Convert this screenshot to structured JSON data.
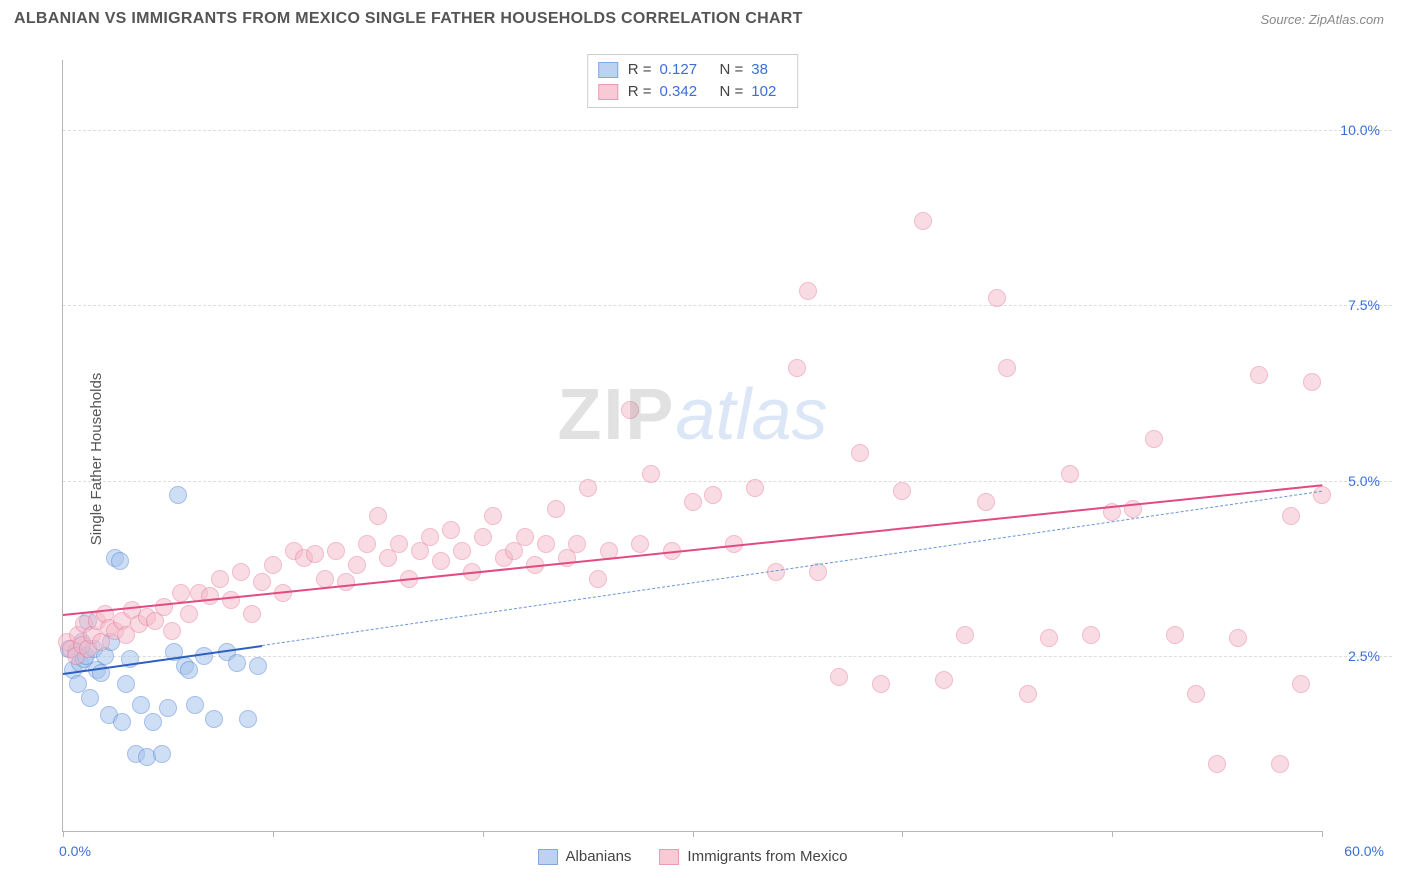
{
  "header": {
    "title": "ALBANIAN VS IMMIGRANTS FROM MEXICO SINGLE FATHER HOUSEHOLDS CORRELATION CHART",
    "source": "Source: ZipAtlas.com"
  },
  "chart": {
    "type": "scatter",
    "ylabel": "Single Father Households",
    "xlim": [
      0,
      60
    ],
    "ylim": [
      0,
      11
    ],
    "xticks_minor_step": 10,
    "yticks": [
      2.5,
      5.0,
      7.5,
      10.0
    ],
    "ytick_labels": [
      "2.5%",
      "5.0%",
      "7.5%",
      "10.0%"
    ],
    "xmin_label": "0.0%",
    "xmax_label": "60.0%",
    "background_color": "#ffffff",
    "grid_color": "#dddddd",
    "axis_color": "#b6b6b6",
    "marker_radius": 9,
    "marker_border_width": 1.2,
    "series": [
      {
        "id": "albanians",
        "label": "Albanians",
        "fill": "#a7c4ec",
        "fill_opacity": 0.55,
        "stroke": "#5a8bd6",
        "trend_color": "#2c5fc0",
        "trend_dash_color": "#6a95d8",
        "trend_width": 2.5,
        "R": 0.127,
        "N": 38,
        "trend_solid": {
          "x0": 0,
          "y0": 2.25,
          "x1": 9.5,
          "y1": 2.65
        },
        "trend_dash": {
          "x0": 9.5,
          "y0": 2.65,
          "x1": 60,
          "y1": 4.85
        },
        "points": [
          [
            0.3,
            2.6
          ],
          [
            0.5,
            2.3
          ],
          [
            0.6,
            2.55
          ],
          [
            0.7,
            2.1
          ],
          [
            0.8,
            2.4
          ],
          [
            0.9,
            2.7
          ],
          [
            1.0,
            2.45
          ],
          [
            1.1,
            2.5
          ],
          [
            1.2,
            3.0
          ],
          [
            1.3,
            1.9
          ],
          [
            1.5,
            2.6
          ],
          [
            1.6,
            2.3
          ],
          [
            1.8,
            2.25
          ],
          [
            2.0,
            2.5
          ],
          [
            2.2,
            1.65
          ],
          [
            2.3,
            2.7
          ],
          [
            2.5,
            3.9
          ],
          [
            2.7,
            3.85
          ],
          [
            2.8,
            1.55
          ],
          [
            3.0,
            2.1
          ],
          [
            3.2,
            2.45
          ],
          [
            3.5,
            1.1
          ],
          [
            3.7,
            1.8
          ],
          [
            4.0,
            1.05
          ],
          [
            4.3,
            1.55
          ],
          [
            4.7,
            1.1
          ],
          [
            5.0,
            1.75
          ],
          [
            5.3,
            2.55
          ],
          [
            5.5,
            4.8
          ],
          [
            5.8,
            2.35
          ],
          [
            6.0,
            2.3
          ],
          [
            6.3,
            1.8
          ],
          [
            6.7,
            2.5
          ],
          [
            7.2,
            1.6
          ],
          [
            7.8,
            2.55
          ],
          [
            8.3,
            2.4
          ],
          [
            8.8,
            1.6
          ],
          [
            9.3,
            2.35
          ]
        ]
      },
      {
        "id": "mexico",
        "label": "Immigrants from Mexico",
        "fill": "#f5b9c8",
        "fill_opacity": 0.5,
        "stroke": "#e67a9b",
        "trend_color": "#e24b82",
        "trend_width": 2.5,
        "R": 0.342,
        "N": 102,
        "trend_solid": {
          "x0": 0,
          "y0": 3.1,
          "x1": 60,
          "y1": 4.95
        },
        "points": [
          [
            0.2,
            2.7
          ],
          [
            0.4,
            2.6
          ],
          [
            0.6,
            2.5
          ],
          [
            0.7,
            2.8
          ],
          [
            0.9,
            2.65
          ],
          [
            1.0,
            2.95
          ],
          [
            1.2,
            2.6
          ],
          [
            1.4,
            2.8
          ],
          [
            1.6,
            3.0
          ],
          [
            1.8,
            2.7
          ],
          [
            2.0,
            3.1
          ],
          [
            2.2,
            2.9
          ],
          [
            2.5,
            2.85
          ],
          [
            2.8,
            3.0
          ],
          [
            3.0,
            2.8
          ],
          [
            3.3,
            3.15
          ],
          [
            3.6,
            2.95
          ],
          [
            4.0,
            3.05
          ],
          [
            4.4,
            3.0
          ],
          [
            4.8,
            3.2
          ],
          [
            5.2,
            2.85
          ],
          [
            5.6,
            3.4
          ],
          [
            6.0,
            3.1
          ],
          [
            6.5,
            3.4
          ],
          [
            7.0,
            3.35
          ],
          [
            7.5,
            3.6
          ],
          [
            8.0,
            3.3
          ],
          [
            8.5,
            3.7
          ],
          [
            9.0,
            3.1
          ],
          [
            9.5,
            3.55
          ],
          [
            10.0,
            3.8
          ],
          [
            10.5,
            3.4
          ],
          [
            11.0,
            4.0
          ],
          [
            11.5,
            3.9
          ],
          [
            12.0,
            3.95
          ],
          [
            12.5,
            3.6
          ],
          [
            13.0,
            4.0
          ],
          [
            13.5,
            3.55
          ],
          [
            14.0,
            3.8
          ],
          [
            14.5,
            4.1
          ],
          [
            15.0,
            4.5
          ],
          [
            15.5,
            3.9
          ],
          [
            16.0,
            4.1
          ],
          [
            16.5,
            3.6
          ],
          [
            17.0,
            4.0
          ],
          [
            17.5,
            4.2
          ],
          [
            18.0,
            3.85
          ],
          [
            18.5,
            4.3
          ],
          [
            19.0,
            4.0
          ],
          [
            19.5,
            3.7
          ],
          [
            20.0,
            4.2
          ],
          [
            20.5,
            4.5
          ],
          [
            21.0,
            3.9
          ],
          [
            21.5,
            4.0
          ],
          [
            22.0,
            4.2
          ],
          [
            22.5,
            3.8
          ],
          [
            23.0,
            4.1
          ],
          [
            23.5,
            4.6
          ],
          [
            24.0,
            3.9
          ],
          [
            24.5,
            4.1
          ],
          [
            25.0,
            4.9
          ],
          [
            25.5,
            3.6
          ],
          [
            26.0,
            4.0
          ],
          [
            27.0,
            6.0
          ],
          [
            27.5,
            4.1
          ],
          [
            28.0,
            5.1
          ],
          [
            29.0,
            4.0
          ],
          [
            30.0,
            4.7
          ],
          [
            31.0,
            4.8
          ],
          [
            32.0,
            4.1
          ],
          [
            33.0,
            4.9
          ],
          [
            34.0,
            3.7
          ],
          [
            35.0,
            6.6
          ],
          [
            35.5,
            7.7
          ],
          [
            36.0,
            3.7
          ],
          [
            37.0,
            2.2
          ],
          [
            38.0,
            5.4
          ],
          [
            39.0,
            2.1
          ],
          [
            40.0,
            4.85
          ],
          [
            41.0,
            8.7
          ],
          [
            42.0,
            2.15
          ],
          [
            43.0,
            2.8
          ],
          [
            44.0,
            4.7
          ],
          [
            44.5,
            7.6
          ],
          [
            45.0,
            6.6
          ],
          [
            46.0,
            1.95
          ],
          [
            47.0,
            2.75
          ],
          [
            48.0,
            5.1
          ],
          [
            49.0,
            2.8
          ],
          [
            50.0,
            4.55
          ],
          [
            51.0,
            4.6
          ],
          [
            52.0,
            5.6
          ],
          [
            53.0,
            2.8
          ],
          [
            54.0,
            1.95
          ],
          [
            55.0,
            0.95
          ],
          [
            56.0,
            2.75
          ],
          [
            57.0,
            6.5
          ],
          [
            58.0,
            0.95
          ],
          [
            58.5,
            4.5
          ],
          [
            59.0,
            2.1
          ],
          [
            59.5,
            6.4
          ],
          [
            60.0,
            4.8
          ]
        ]
      }
    ],
    "legend_top": {
      "rows": [
        {
          "swatch": "albanians",
          "R_label": "R =",
          "R": "0.127",
          "N_label": "N =",
          "N": "38"
        },
        {
          "swatch": "mexico",
          "R_label": "R =",
          "R": "0.342",
          "N_label": "N =",
          "N": "102"
        }
      ]
    },
    "watermark": {
      "part1": "ZIP",
      "part2": "atlas"
    }
  }
}
